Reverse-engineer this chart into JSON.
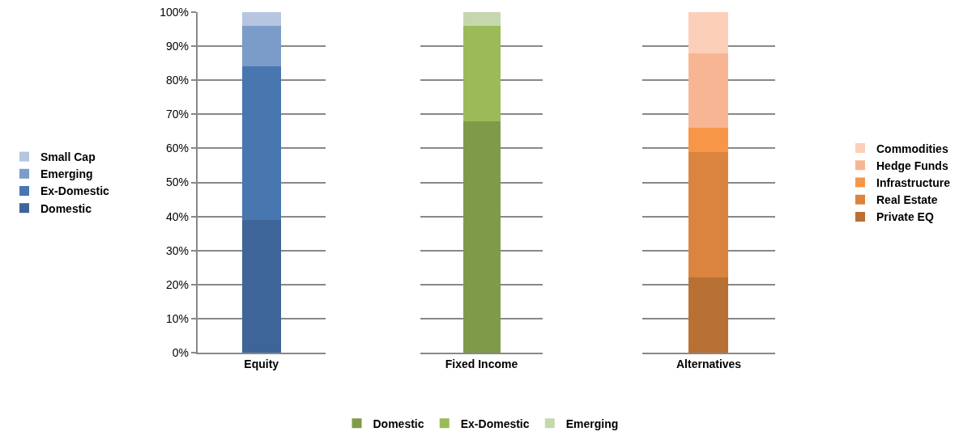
{
  "chart_data": [
    {
      "type": "bar",
      "stacked": true,
      "categories": [
        "Equity"
      ],
      "grid": "y",
      "legend": "left",
      "ylim": [
        0,
        100
      ],
      "yticks": [
        {
          "value": 0,
          "label": "0%"
        },
        {
          "value": 10,
          "label": "10%"
        },
        {
          "value": 20,
          "label": "20%"
        },
        {
          "value": 30,
          "label": "30%"
        },
        {
          "value": 40,
          "label": "40%"
        },
        {
          "value": 50,
          "label": "50%"
        },
        {
          "value": 60,
          "label": "60%"
        },
        {
          "value": 70,
          "label": "70%"
        },
        {
          "value": 80,
          "label": "80%"
        },
        {
          "value": 90,
          "label": "90%"
        },
        {
          "value": 100,
          "label": "100%"
        }
      ],
      "series": [
        {
          "name": "Domestic",
          "color": "#3e6597",
          "values": [
            39
          ]
        },
        {
          "name": "Ex-Domestic",
          "color": "#4877b0",
          "values": [
            45
          ]
        },
        {
          "name": "Emerging",
          "color": "#7b9bc9",
          "values": [
            12
          ]
        },
        {
          "name": "Small Cap",
          "color": "#b6c5e0",
          "values": [
            4
          ]
        }
      ]
    },
    {
      "type": "bar",
      "stacked": true,
      "categories": [
        "Fixed Income"
      ],
      "grid": "y",
      "legend": "bottom",
      "ylim": [
        0,
        100
      ],
      "tick_labels": "x",
      "yticks": [
        0,
        10,
        20,
        30,
        40,
        50,
        60,
        70,
        80,
        90,
        100
      ],
      "series": [
        {
          "name": "Domestic",
          "color": "#7f9a48",
          "values": [
            68
          ]
        },
        {
          "name": "Ex-Domestic",
          "color": "#9bbb59",
          "values": [
            28
          ]
        },
        {
          "name": "Emerging",
          "color": "#c6d7ad",
          "values": [
            4
          ]
        }
      ]
    },
    {
      "type": "bar",
      "stacked": true,
      "categories": [
        "Alternatives"
      ],
      "grid": "y",
      "legend": "right",
      "ylim": [
        0,
        100
      ],
      "tick_labels": "x",
      "yticks": [
        0,
        10,
        20,
        30,
        40,
        50,
        60,
        70,
        80,
        90,
        100
      ],
      "series": [
        {
          "name": "Private EQ",
          "color": "#b97034",
          "values": [
            22
          ]
        },
        {
          "name": "Real Estate",
          "color": "#db843f",
          "values": [
            37
          ]
        },
        {
          "name": "Infrastructure",
          "color": "#f79646",
          "values": [
            7
          ]
        },
        {
          "name": "Hedge Funds",
          "color": "#f8b593",
          "values": [
            22
          ]
        },
        {
          "name": "Commodities",
          "color": "#fbcfb8",
          "values": [
            12
          ]
        }
      ]
    }
  ]
}
